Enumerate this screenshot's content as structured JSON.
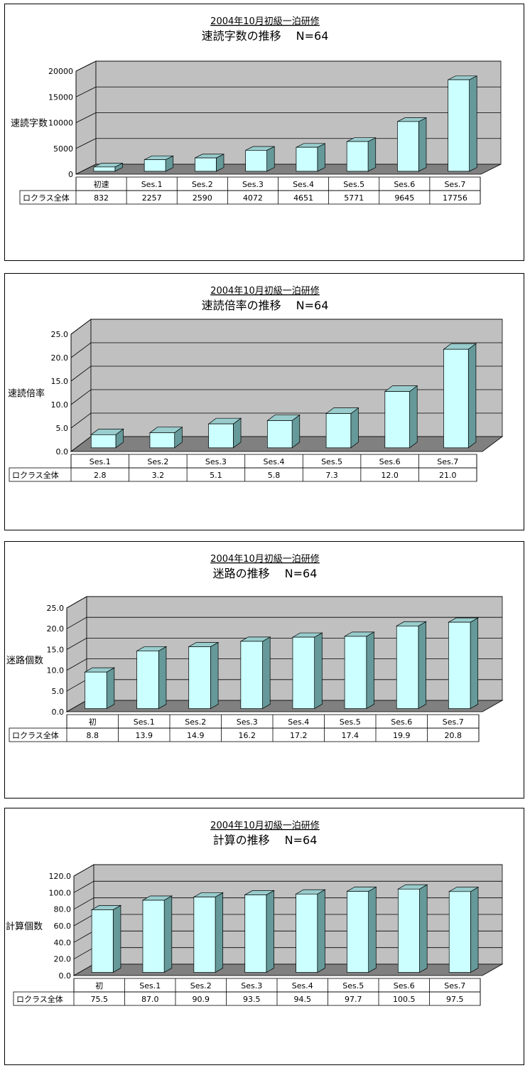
{
  "chart_data": [
    {
      "type": "bar",
      "subtitle": "2004年10月初級一泊研修",
      "title": "速読字数の推移　 N=64",
      "ylabel": "速読字数",
      "ylim": [
        0,
        20000
      ],
      "yticks": [
        "0",
        "5000",
        "10000",
        "15000",
        "20000"
      ],
      "categories": [
        "初速",
        "Ses.1",
        "Ses.2",
        "Ses.3",
        "Ses.4",
        "Ses.5",
        "Ses.6",
        "Ses.7"
      ],
      "series": [
        {
          "name": "ロクラス全体",
          "values": [
            832,
            2257,
            2590,
            4072,
            4651,
            5771,
            9645,
            17756
          ]
        }
      ],
      "value_labels": [
        "832",
        "2257",
        "2590",
        "4072",
        "4651",
        "5771",
        "9645",
        "17756"
      ],
      "grid": true,
      "legend": "data table"
    },
    {
      "type": "bar",
      "subtitle": "2004年10月初級一泊研修",
      "title": "速読倍率の推移　 N=64",
      "ylabel": "速読倍率",
      "ylim": [
        0,
        25
      ],
      "yticks": [
        "0.0",
        "5.0",
        "10.0",
        "15.0",
        "20.0",
        "25.0"
      ],
      "categories": [
        "Ses.1",
        "Ses.2",
        "Ses.3",
        "Ses.4",
        "Ses.5",
        "Ses.6",
        "Ses.7"
      ],
      "series": [
        {
          "name": "ロクラス全体",
          "values": [
            2.8,
            3.2,
            5.1,
            5.8,
            7.3,
            12.0,
            21.0
          ]
        }
      ],
      "value_labels": [
        "2.8",
        "3.2",
        "5.1",
        "5.8",
        "7.3",
        "12.0",
        "21.0"
      ],
      "grid": true,
      "legend": "data table"
    },
    {
      "type": "bar",
      "subtitle": "2004年10月初級一泊研修",
      "title": "迷路の推移　 N=64",
      "ylabel": "迷路個数",
      "ylim": [
        0,
        25
      ],
      "yticks": [
        "0.0",
        "5.0",
        "10.0",
        "15.0",
        "20.0",
        "25.0"
      ],
      "categories": [
        "初",
        "Ses.1",
        "Ses.2",
        "Ses.3",
        "Ses.4",
        "Ses.5",
        "Ses.6",
        "Ses.7"
      ],
      "series": [
        {
          "name": "ロクラス全体",
          "values": [
            8.8,
            13.9,
            14.9,
            16.2,
            17.2,
            17.4,
            19.9,
            20.8
          ]
        }
      ],
      "value_labels": [
        "8.8",
        "13.9",
        "14.9",
        "16.2",
        "17.2",
        "17.4",
        "19.9",
        "20.8"
      ],
      "grid": true,
      "legend": "data table"
    },
    {
      "type": "bar",
      "subtitle": "2004年10月初級一泊研修",
      "title": "計算の推移　 N=64",
      "ylabel": "計算個数",
      "ylim": [
        0,
        120
      ],
      "yticks": [
        "0.0",
        "20.0",
        "40.0",
        "60.0",
        "80.0",
        "100.0",
        "120.0"
      ],
      "categories": [
        "初",
        "Ses.1",
        "Ses.2",
        "Ses.3",
        "Ses.4",
        "Ses.5",
        "Ses.6",
        "Ses.7"
      ],
      "series": [
        {
          "name": "ロクラス全体",
          "values": [
            75.5,
            87.0,
            90.9,
            93.5,
            94.5,
            97.7,
            100.5,
            97.5
          ]
        }
      ],
      "value_labels": [
        "75.5",
        "87.0",
        "90.9",
        "93.5",
        "94.5",
        "97.7",
        "100.5",
        "97.5"
      ],
      "grid": true,
      "legend": "data table"
    }
  ],
  "colors": {
    "bar_front": "#ccffff",
    "bar_side": "#669999",
    "bar_top": "#99cccc",
    "wall": "#c0c0c0",
    "floor": "#808080",
    "outline": "#000000"
  }
}
